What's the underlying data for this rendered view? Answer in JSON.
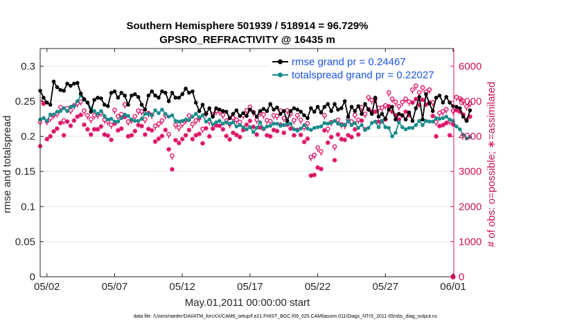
{
  "chart_data": {
    "type": "line",
    "title_line1": "Southern Hemisphere 501939 / 518914 = 96.729%",
    "title_line2": "GPSRO_REFRACTIVITY @ 16435 m",
    "xlabel": "May.01,2011 00:00:00 start",
    "ylabel_left": "rmse and totalspread",
    "ylabel_right": "# of obs: o=possible; ∗=assimilated",
    "footnote": "data file: /Users/raeder/DAI/ATM_forcXX/CAM6_setup/f.e21.FHIST_BGC.f09_025.CAM6assim.011/Diags_NTrS_2011-05/obs_diag_output.nc",
    "xlim": [
      1.5,
      32.05
    ],
    "ylim_left": [
      0,
      0.325
    ],
    "ylim_right": [
      0,
      6500
    ],
    "x_ticks": [
      {
        "value": 2,
        "label": "05/02"
      },
      {
        "value": 7,
        "label": "05/07"
      },
      {
        "value": 12,
        "label": "05/12"
      },
      {
        "value": 17,
        "label": "05/17"
      },
      {
        "value": 22,
        "label": "05/22"
      },
      {
        "value": 27,
        "label": "05/27"
      },
      {
        "value": 32,
        "label": "06/01"
      }
    ],
    "y_ticks_left": [
      "0",
      "0.05",
      "0.1",
      "0.15",
      "0.2",
      "0.25",
      "0.3"
    ],
    "y_ticks_right": [
      "0",
      "1000",
      "2000",
      "3000",
      "4000",
      "5000",
      "6000"
    ],
    "colors": {
      "rmse": "#000000",
      "spread": "#1a8c8c",
      "obs": "#dd1166",
      "legend_text": "#1a55e0"
    },
    "series": [
      {
        "name": "rmse grand pr = 0.24467",
        "axis": "left",
        "x_start": 1.5,
        "x_step": 0.25,
        "values": [
          0.265,
          0.255,
          0.248,
          0.245,
          0.278,
          0.27,
          0.266,
          0.265,
          0.275,
          0.272,
          0.275,
          0.276,
          0.261,
          0.253,
          0.248,
          0.235,
          0.252,
          0.255,
          0.254,
          0.245,
          0.243,
          0.262,
          0.264,
          0.255,
          0.262,
          0.258,
          0.245,
          0.258,
          0.26,
          0.256,
          0.245,
          0.238,
          0.258,
          0.264,
          0.258,
          0.255,
          0.264,
          0.262,
          0.25,
          0.262,
          0.255,
          0.255,
          0.26,
          0.268,
          0.262,
          0.264,
          0.248,
          0.236,
          0.245,
          0.232,
          0.24,
          0.228,
          0.24,
          0.238,
          0.236,
          0.235,
          0.226,
          0.232,
          0.237,
          0.229,
          0.233,
          0.229,
          0.238,
          0.234,
          0.228,
          0.236,
          0.239,
          0.236,
          0.246,
          0.238,
          0.241,
          0.232,
          0.236,
          0.222,
          0.236,
          0.24,
          0.238,
          0.235,
          0.23,
          0.226,
          0.24,
          0.235,
          0.242,
          0.234,
          0.242,
          0.246,
          0.236,
          0.246,
          0.238,
          0.24,
          0.25,
          0.228,
          0.242,
          0.236,
          0.243,
          0.232,
          0.246,
          0.238,
          0.232,
          0.255,
          0.228,
          0.232,
          0.225,
          0.238,
          0.242,
          0.224,
          0.232,
          0.23,
          0.224,
          0.234,
          0.222,
          0.24,
          0.256,
          0.224,
          0.26,
          0.247,
          0.236,
          0.255,
          0.258,
          0.248,
          0.256,
          0.248,
          0.243,
          0.242,
          0.24,
          0.228,
          0.222,
          0.237
        ]
      },
      {
        "name": "totalspread grand pr = 0.22027",
        "axis": "left",
        "x_start": 1.5,
        "x_step": 0.25,
        "values": [
          0.224,
          0.226,
          0.222,
          0.231,
          0.231,
          0.235,
          0.236,
          0.24,
          0.236,
          0.242,
          0.243,
          0.25,
          0.258,
          0.252,
          0.248,
          0.24,
          0.236,
          0.232,
          0.236,
          0.229,
          0.224,
          0.225,
          0.221,
          0.221,
          0.226,
          0.231,
          0.229,
          0.224,
          0.222,
          0.222,
          0.225,
          0.232,
          0.232,
          0.23,
          0.237,
          0.233,
          0.238,
          0.232,
          0.228,
          0.23,
          0.222,
          0.221,
          0.222,
          0.224,
          0.223,
          0.228,
          0.232,
          0.227,
          0.23,
          0.221,
          0.224,
          0.217,
          0.22,
          0.222,
          0.218,
          0.22,
          0.218,
          0.22,
          0.214,
          0.216,
          0.213,
          0.21,
          0.213,
          0.206,
          0.212,
          0.22,
          0.211,
          0.214,
          0.215,
          0.218,
          0.218,
          0.215,
          0.216,
          0.218,
          0.218,
          0.21,
          0.208,
          0.211,
          0.216,
          0.211,
          0.209,
          0.212,
          0.213,
          0.214,
          0.219,
          0.218,
          0.219,
          0.222,
          0.218,
          0.216,
          0.216,
          0.222,
          0.216,
          0.219,
          0.212,
          0.216,
          0.209,
          0.212,
          0.219,
          0.221,
          0.213,
          0.222,
          0.213,
          0.212,
          0.2,
          0.205,
          0.22,
          0.213,
          0.21,
          0.212,
          0.212,
          0.216,
          0.222,
          0.216,
          0.222,
          0.221,
          0.221,
          0.226,
          0.225,
          0.226,
          0.228,
          0.224,
          0.222,
          0.214,
          0.21,
          0.202,
          0.197,
          0.199
        ]
      },
      {
        "name": "possible",
        "axis": "right",
        "marker": "o",
        "x_start": 1.5,
        "x_step": 0.25,
        "values": [
          4360,
          4970,
          4380,
          4470,
          4560,
          4600,
          4780,
          4400,
          4750,
          4690,
          4830,
          4890,
          4940,
          4680,
          4550,
          4440,
          4550,
          4560,
          4620,
          4420,
          4380,
          4280,
          4700,
          4520,
          4580,
          4860,
          4370,
          4420,
          4520,
          4680,
          4660,
          4430,
          4610,
          4560,
          4250,
          4310,
          4400,
          4550,
          4010,
          3400,
          4280,
          4200,
          4310,
          4410,
          4540,
          4300,
          4400,
          4470,
          4160,
          4600,
          4380,
          4580,
          4670,
          4660,
          4560,
          4400,
          4300,
          4480,
          4420,
          4360,
          4550,
          4690,
          4790,
          4640,
          4420,
          4620,
          4570,
          4410,
          4380,
          4550,
          4530,
          4680,
          4470,
          4690,
          4600,
          4410,
          4550,
          4420,
          4220,
          4320,
          3360,
          3420,
          3630,
          3520,
          4550,
          4160,
          4350,
          3660,
          4420,
          4290,
          4270,
          4420,
          4370,
          4560,
          4420,
          4780,
          4590,
          5060,
          4980,
          5010,
          4760,
          4770,
          4830,
          5200,
          5020,
          4930,
          4810,
          4930,
          5020,
          4940,
          5280,
          5390,
          5200,
          5340,
          5220,
          5280,
          4920,
          4360,
          4620,
          4660,
          4720,
          4390,
          4680,
          5070,
          5030,
          4950,
          4800,
          4890
        ]
      },
      {
        "name": "assimilated",
        "axis": "right",
        "marker": "*",
        "x_start": 1.5,
        "x_step": 0.25,
        "values": [
          3720,
          4930,
          3920,
          4000,
          4140,
          4220,
          4380,
          4030,
          4420,
          4300,
          4450,
          4560,
          4610,
          4330,
          4200,
          4050,
          4200,
          4200,
          4280,
          4050,
          4020,
          3900,
          4360,
          4170,
          4220,
          4550,
          4000,
          4030,
          4150,
          4320,
          4290,
          4050,
          4210,
          4170,
          3850,
          3930,
          4010,
          4180,
          3630,
          3060,
          3890,
          3810,
          3920,
          4030,
          4180,
          3920,
          4030,
          4070,
          3800,
          4230,
          4000,
          4220,
          4310,
          4300,
          4200,
          4010,
          3910,
          4100,
          4040,
          3980,
          4180,
          4330,
          4440,
          4270,
          4050,
          4250,
          4210,
          4030,
          4000,
          4180,
          4150,
          4330,
          4100,
          4330,
          4220,
          4030,
          4180,
          4040,
          3840,
          3930,
          2880,
          2900,
          3110,
          3070,
          4170,
          3820,
          3980,
          3320,
          4050,
          3920,
          3900,
          4030,
          3980,
          4200,
          4050,
          4450,
          4200,
          4770,
          4700,
          4700,
          4420,
          4430,
          4480,
          4860,
          4700,
          4600,
          4480,
          4590,
          4700,
          4600,
          4960,
          5060,
          4890,
          5040,
          4900,
          4960,
          4580,
          4000,
          4290,
          4320,
          4380,
          4030,
          4340,
          4740,
          4700,
          4620,
          4470,
          4560
        ]
      }
    ],
    "extra_points": [
      {
        "x": 32.0,
        "y_right": 0,
        "marker": "o"
      }
    ]
  }
}
